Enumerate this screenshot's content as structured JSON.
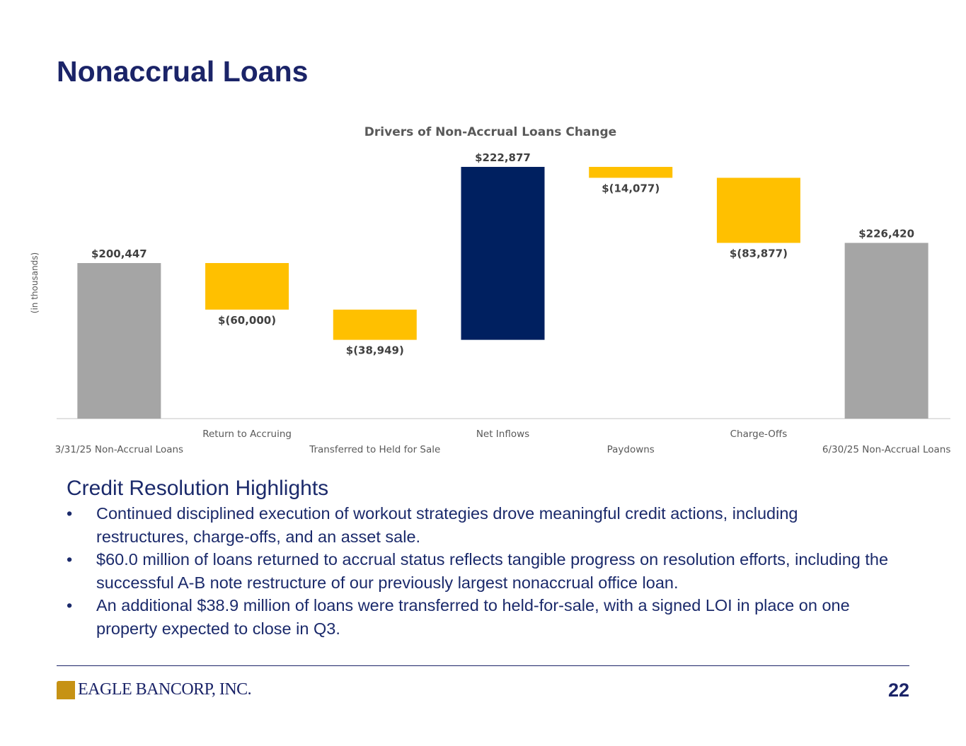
{
  "page": {
    "title": "Nonaccrual Loans",
    "logo": "EAGLE BANCORP, INC.",
    "page_number": "22"
  },
  "chart_data": {
    "type": "waterfall",
    "title": "Drivers of Non-Accrual Loans Change",
    "y_label": "(in thousands)",
    "categories": [
      "3/31/25 Non-Accrual Loans",
      "Return to Accruing",
      "Transferred to Held for Sale",
      "Net Inflows",
      "Paydowns",
      "Charge-Offs",
      "6/30/25 Non-Accrual Loans"
    ],
    "values": [
      200447,
      -60000,
      -38949,
      222877,
      -14077,
      -83877,
      226420
    ],
    "value_labels": [
      "$200,447",
      "$(60,000)",
      "$(38,949)",
      "$222,877",
      "$(14,077)",
      "$(83,877)",
      "$226,420"
    ],
    "measure": [
      "total",
      "relative",
      "relative",
      "relative",
      "relative",
      "relative",
      "total"
    ],
    "colors": [
      "#a5a5a5",
      "#ffc000",
      "#ffc000",
      "#002060",
      "#ffc000",
      "#ffc000",
      "#a5a5a5"
    ]
  },
  "highlights": {
    "heading": "Credit Resolution Highlights",
    "bullets": [
      "Continued disciplined execution of workout strategies drove meaningful credit actions, including restructures, charge-offs, and an asset sale.",
      "$60.0 million of loans returned to accrual status reflects tangible progress on resolution efforts, including the successful A-B note restructure of our previously largest nonaccrual office loan.",
      "An additional $38.9 million of loans were transferred to held-for-sale, with a signed LOI in place on one property expected to close in Q3."
    ]
  }
}
